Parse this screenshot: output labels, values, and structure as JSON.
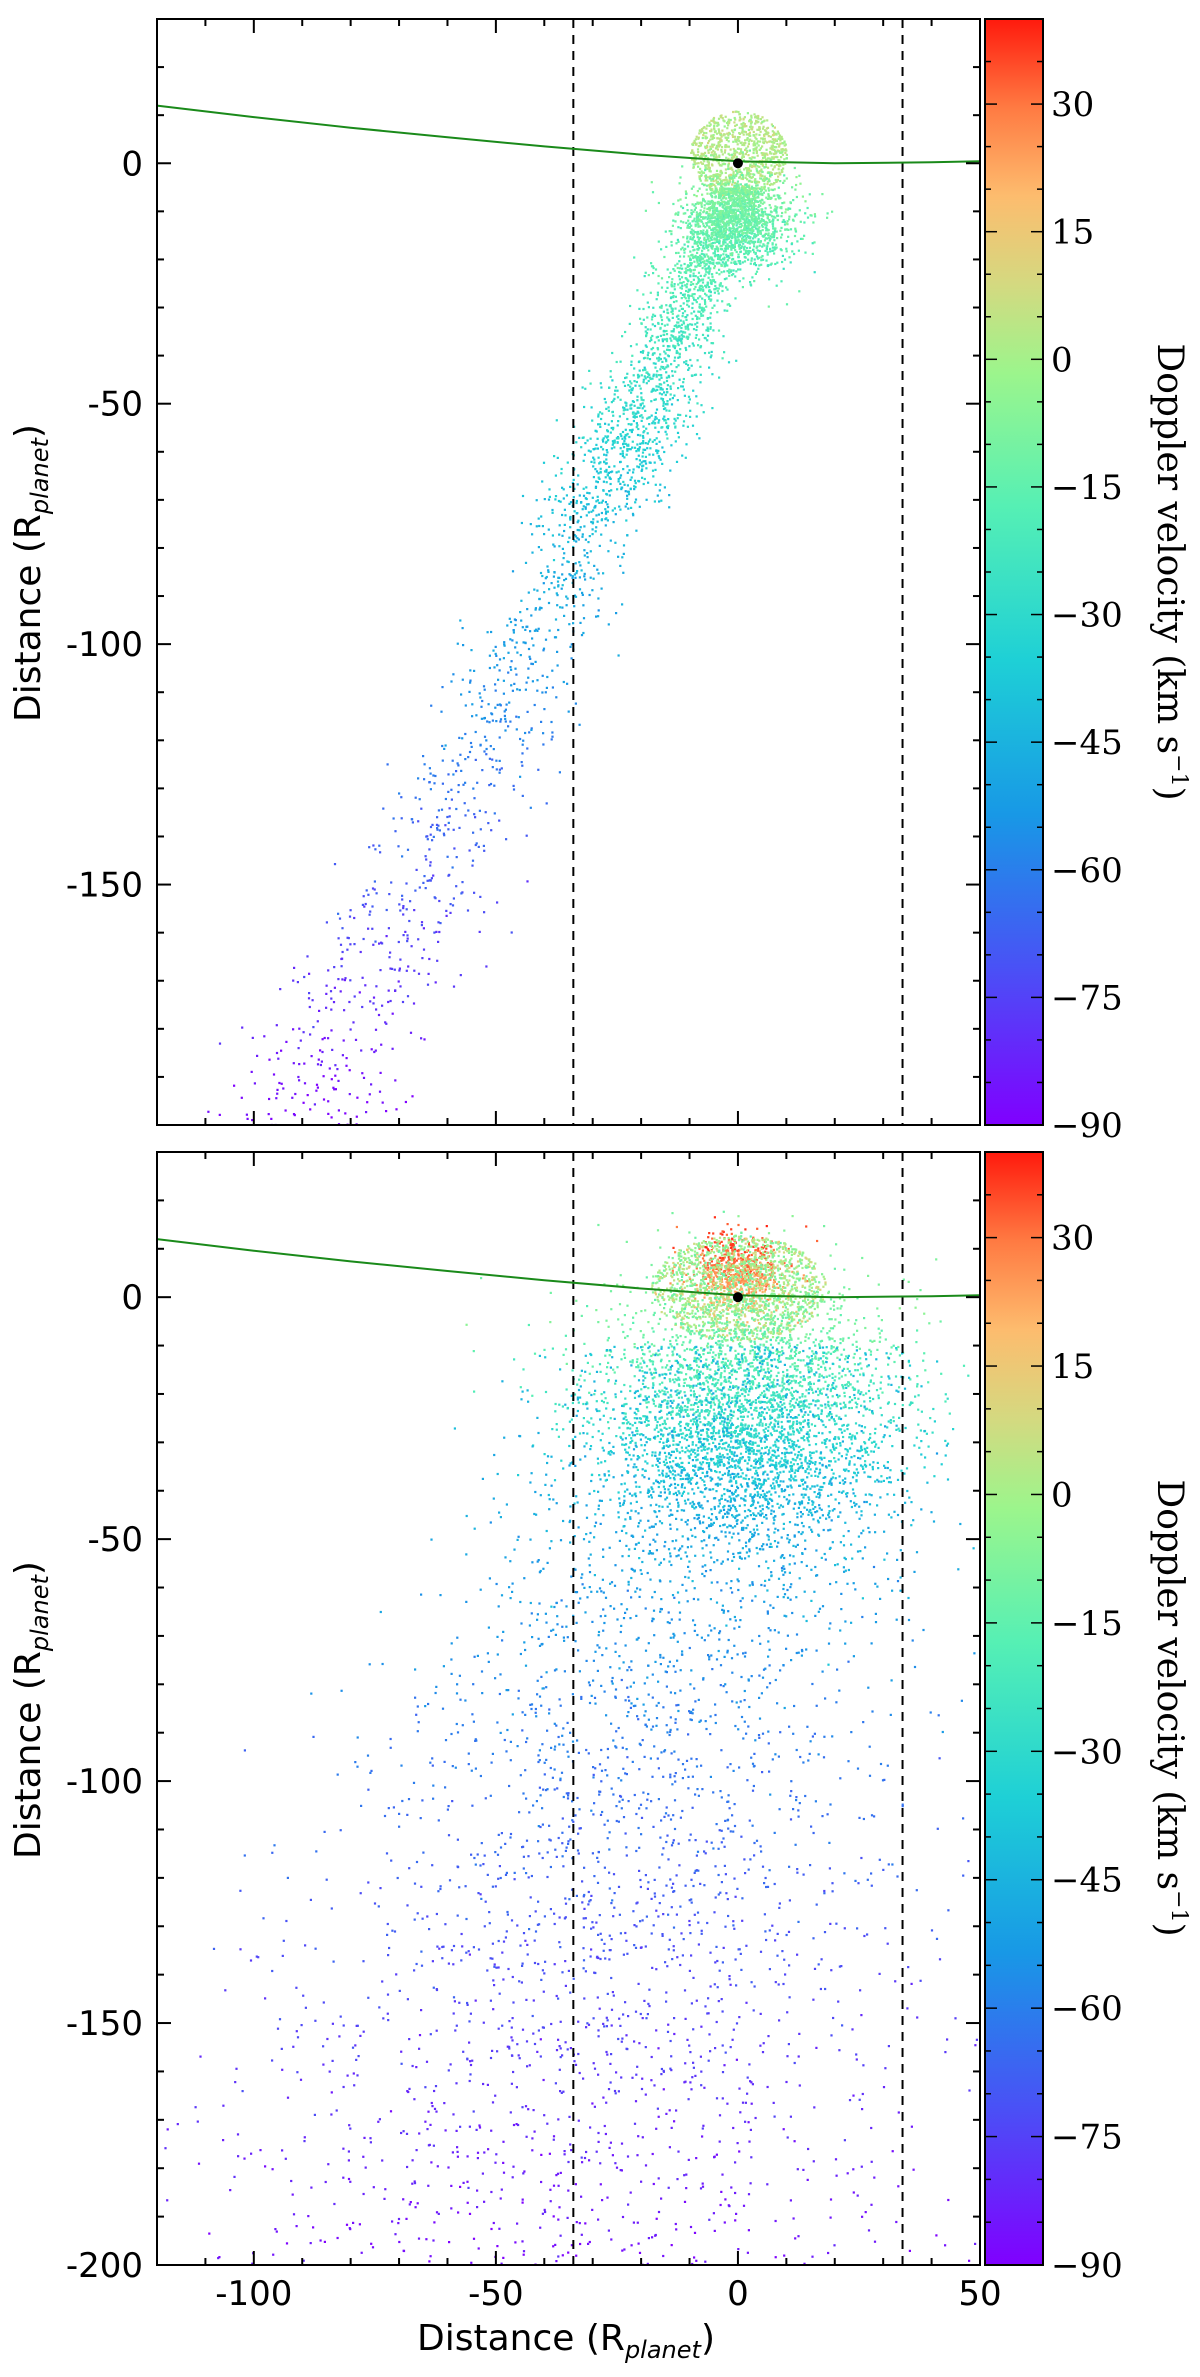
{
  "chart_data": [
    {
      "type": "scatter",
      "panel": "top",
      "xlim": [
        -120,
        50
      ],
      "ylim": [
        -200,
        30
      ],
      "ylabel": "Distance (R",
      "ylabel_sub": "planet",
      "ylabel_close": ")",
      "xlabel": "",
      "yticks": [
        0,
        -50,
        -100,
        -150
      ],
      "ytick_labels": [
        "0",
        "-50",
        "-100",
        "-150"
      ],
      "xticks": [
        -100,
        -50,
        0,
        50
      ],
      "xtick_labels": [
        "",
        "",
        "",
        ""
      ],
      "grid": false,
      "vlines": [
        -34,
        34
      ],
      "planet": {
        "x": 0,
        "y": 0
      },
      "orbit": [
        [
          -120,
          12
        ],
        [
          -100,
          9.6
        ],
        [
          -80,
          7.4
        ],
        [
          -60,
          5.4
        ],
        [
          -40,
          3.5
        ],
        [
          -20,
          1.8
        ],
        [
          0,
          0.4
        ],
        [
          20,
          0
        ],
        [
          40,
          0.2
        ],
        [
          50,
          0.4
        ]
      ],
      "colorbar": {
        "label": "Doppler velocity (km s",
        "label_sup": "−1",
        "label_close": ")",
        "range": [
          -90,
          40
        ],
        "ticks": [
          30,
          15,
          0,
          -15,
          -30,
          -45,
          -60,
          -75,
          -90
        ],
        "tick_labels": [
          "30",
          "15",
          "0",
          "−15",
          "−30",
          "−45",
          "−60",
          "−75",
          "−90"
        ]
      },
      "clouds": [
        {
          "n": 900,
          "shape": "disk",
          "cx": 0,
          "cy": 2,
          "rx": 10,
          "ry": 9,
          "v": [
            0,
            5
          ]
        },
        {
          "n": 1300,
          "shape": "gauss",
          "cx": 0,
          "cy": -12,
          "sx": 6,
          "sy": 5,
          "v": [
            -18,
            -8
          ]
        },
        {
          "n": 1800,
          "shape": "stream",
          "y0": -5,
          "y1": -70,
          "x0": 0,
          "x1": -28,
          "w0": 7,
          "w1": 14,
          "v": [
            -40,
            -8
          ]
        },
        {
          "n": 900,
          "shape": "stream",
          "y0": -70,
          "y1": -200,
          "x0": -28,
          "x1": -90,
          "w0": 12,
          "w1": 22,
          "v": [
            -90,
            -40
          ]
        }
      ]
    },
    {
      "type": "scatter",
      "panel": "bottom",
      "xlim": [
        -120,
        50
      ],
      "ylim": [
        -200,
        30
      ],
      "ylabel": "Distance (R",
      "ylabel_sub": "planet",
      "ylabel_close": ")",
      "xlabel": "Distance (R",
      "xlabel_sub": "planet",
      "xlabel_close": ")",
      "yticks": [
        0,
        -50,
        -100,
        -150,
        -200
      ],
      "ytick_labels": [
        "0",
        "-50",
        "-100",
        "-150",
        "-200"
      ],
      "xticks": [
        -100,
        -50,
        0,
        50
      ],
      "xtick_labels": [
        "-100",
        "-50",
        "0",
        "50"
      ],
      "grid": false,
      "vlines": [
        -34,
        34
      ],
      "planet": {
        "x": 0,
        "y": 0
      },
      "orbit": [
        [
          -120,
          12
        ],
        [
          -100,
          9.6
        ],
        [
          -80,
          7.4
        ],
        [
          -60,
          5.4
        ],
        [
          -40,
          3.5
        ],
        [
          -20,
          1.8
        ],
        [
          0,
          0.4
        ],
        [
          20,
          0
        ],
        [
          40,
          0.2
        ],
        [
          50,
          0.4
        ]
      ],
      "colorbar": {
        "label": "Doppler velocity (km s",
        "label_sup": "−1",
        "label_close": ")",
        "range": [
          -90,
          40
        ],
        "ticks": [
          30,
          15,
          0,
          -15,
          -30,
          -45,
          -60,
          -75,
          -90
        ],
        "tick_labels": [
          "30",
          "15",
          "0",
          "−15",
          "−30",
          "−45",
          "−60",
          "−75",
          "−90"
        ]
      },
      "clouds": [
        {
          "n": 700,
          "shape": "gauss",
          "cx": 0,
          "cy": 5,
          "sx": 5,
          "sy": 4,
          "v": [
            20,
            35
          ]
        },
        {
          "n": 1400,
          "shape": "disk",
          "cx": 0,
          "cy": 2,
          "rx": 18,
          "ry": 11,
          "v": [
            -10,
            10
          ]
        },
        {
          "n": 3500,
          "shape": "gauss",
          "cx": 2,
          "cy": -25,
          "sx": 16,
          "sy": 14,
          "v": [
            -45,
            -10
          ]
        },
        {
          "n": 3200,
          "shape": "fan",
          "y0": -10,
          "y1": -200,
          "xc0": 0,
          "xc1": -45,
          "w0": 30,
          "w1": 75,
          "v": [
            -88,
            -40
          ]
        }
      ]
    }
  ]
}
